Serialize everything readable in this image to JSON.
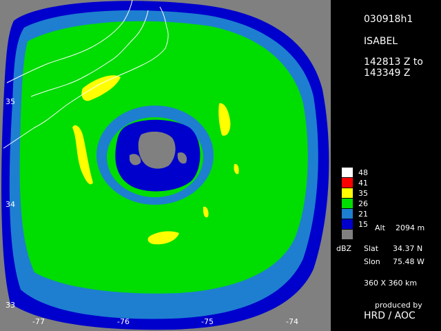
{
  "scan": {
    "id": "030918h1",
    "storm": "ISABEL",
    "time_from": "142813 Z to",
    "time_to": "143349 Z"
  },
  "map": {
    "lon_labels": [
      "-77",
      "-76",
      "-75",
      "-74"
    ],
    "lat_labels": [
      "35",
      "34",
      "33"
    ],
    "background_color": "#808080",
    "coastline_color": "#ffffff"
  },
  "legend": {
    "unit": "dBZ",
    "levels": [
      {
        "label": "48",
        "color": "#ffffff"
      },
      {
        "label": "41",
        "color": "#ff0000"
      },
      {
        "label": "35",
        "color": "#ffff00"
      },
      {
        "label": "26",
        "color": "#00dd00"
      },
      {
        "label": "21",
        "color": "#1e7fd0"
      },
      {
        "label": "15",
        "color": "#0000cc"
      },
      {
        "label": "",
        "color": "#808080"
      }
    ],
    "alt_label": "Alt",
    "alt_value": "2094 m"
  },
  "location": {
    "slat_label": "Slat",
    "slat_value": "34.37 N",
    "slon_label": "Slon",
    "slon_value": "75.48 W"
  },
  "domain": "360 X 360 km",
  "credit": {
    "line1": "produced by",
    "line2": "HRD / AOC"
  }
}
